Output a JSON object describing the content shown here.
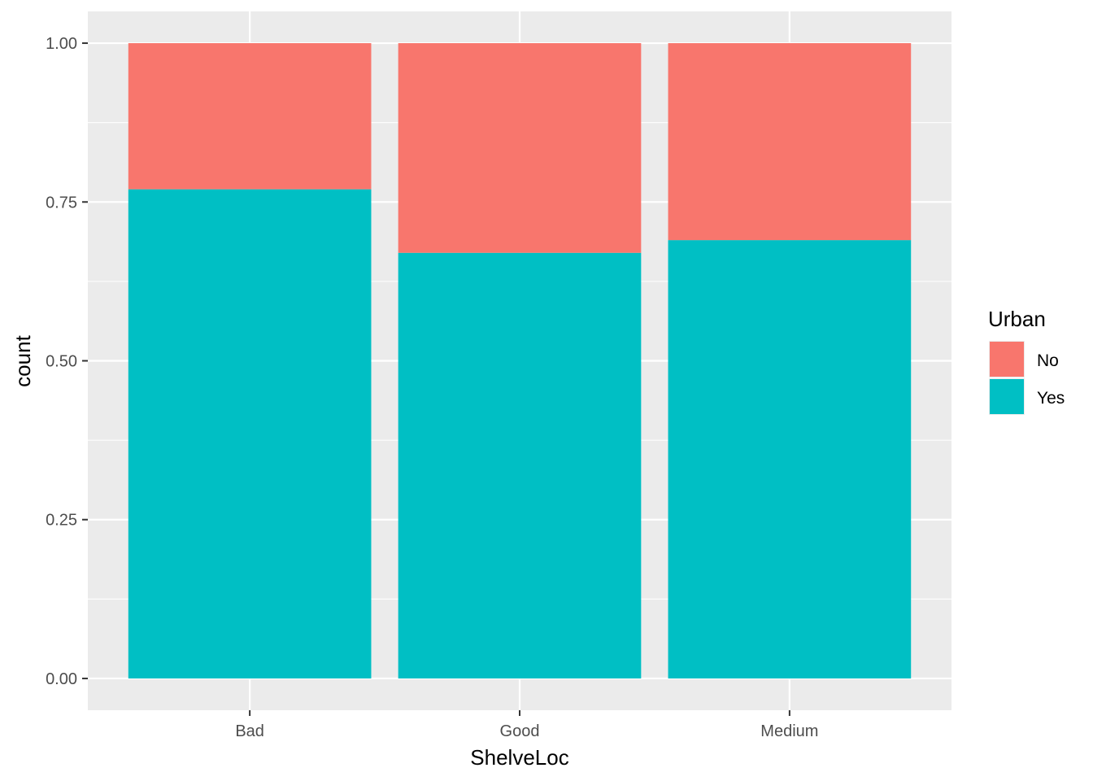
{
  "chart_data": {
    "type": "bar",
    "stacked": true,
    "categories": [
      "Bad",
      "Good",
      "Medium"
    ],
    "series": [
      {
        "name": "No",
        "values": [
          0.23,
          0.33,
          0.31
        ],
        "color": "#F8766D"
      },
      {
        "name": "Yes",
        "values": [
          0.77,
          0.67,
          0.69
        ],
        "color": "#00BFC4"
      }
    ],
    "xlabel": "ShelveLoc",
    "ylabel": "count",
    "ylim": [
      -0.05,
      1.05
    ],
    "yticks": [
      0.0,
      0.25,
      0.5,
      0.75,
      1.0
    ],
    "ytick_labels": [
      "0.00",
      "0.25",
      "0.50",
      "0.75",
      "1.00"
    ],
    "legend": {
      "title": "Urban",
      "position": "right"
    },
    "grid": true,
    "panel_background": "#EBEBEB",
    "grid_color": "#FFFFFF"
  }
}
